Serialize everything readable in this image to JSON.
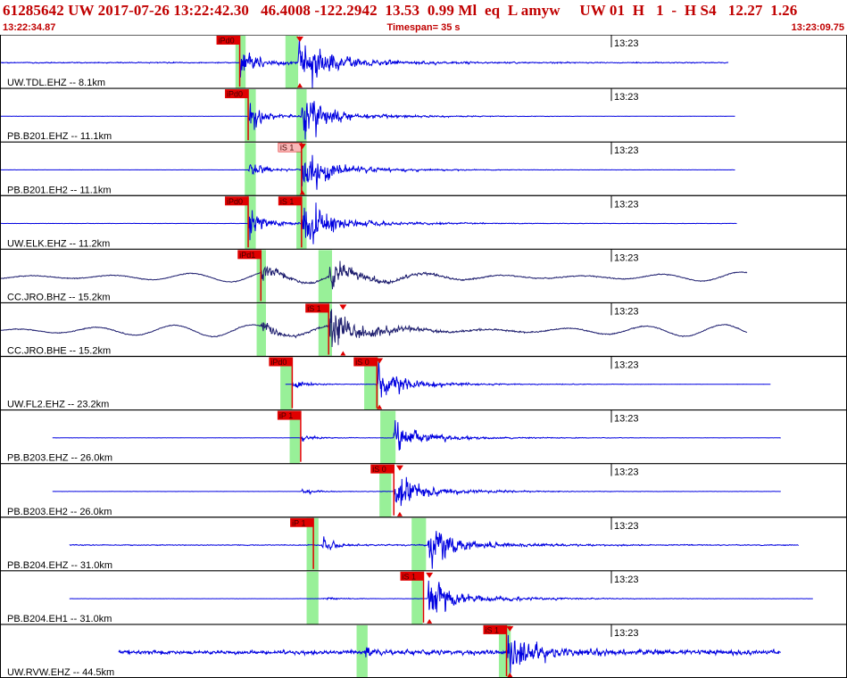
{
  "header": {
    "title": "61285642 UW 2017-07-26 13:22:42.30   46.4008 -122.2942  13.53  0.99 Ml  eq  L amyw     UW 01  H   1  -  H S4   12.27  1.26",
    "start_time": "13:22:34.87",
    "timespan": "Timespan=  35 s",
    "end_time": "13:23:09.75"
  },
  "colors": {
    "trace_blue": "#0000e0",
    "trace_navy": "#202070",
    "pick_red": "#e00000",
    "pick_pink": "#f8b8b8",
    "window_green": "#98f098",
    "header_red": "#c00000"
  },
  "chart_data": {
    "type": "line",
    "x_axis": {
      "unit": "s",
      "start_time": "13:22:34.87",
      "end_time": "13:23:09.75",
      "span_s": 35,
      "minute_label": "13:23"
    },
    "traces": [
      {
        "station": "UW.TDL.EHZ -- 8.1km",
        "color": "#0000e0",
        "data_start": 0.0,
        "data_end": 0.86,
        "noise": 0.12,
        "p_arrival": 0.283,
        "s_arrival": 0.352,
        "p_amp": 0.7,
        "s_amp": 0.8,
        "microseism": 0,
        "picks": [
          {
            "label": "iPd0",
            "pos": 0.283,
            "style": "red"
          }
        ],
        "s_tick": 0.354,
        "green_windows": [
          [
            0.278,
            0.29
          ],
          [
            0.337,
            0.352
          ]
        ]
      },
      {
        "station": "PB.B201.EHZ -- 11.1km",
        "color": "#0000e0",
        "data_start": 0.0,
        "data_end": 0.868,
        "noise": 0.02,
        "p_arrival": 0.293,
        "s_arrival": 0.356,
        "p_amp": 0.55,
        "s_amp": 0.75,
        "microseism": 0,
        "picks": [
          {
            "label": "iPd0",
            "pos": 0.293,
            "style": "red"
          }
        ],
        "green_windows": [
          [
            0.289,
            0.302
          ],
          [
            0.35,
            0.362
          ]
        ]
      },
      {
        "station": "PB.B201.EH2 -- 11.1km",
        "color": "#0000e0",
        "data_start": 0.0,
        "data_end": 0.868,
        "noise": 0.02,
        "p_arrival": 0.293,
        "s_arrival": 0.356,
        "p_amp": 0.3,
        "s_amp": 0.7,
        "microseism": 0,
        "picks": [
          {
            "label": "iS 1",
            "pos": 0.356,
            "style": "pink"
          }
        ],
        "s_tick": 0.357,
        "green_windows": [
          [
            0.289,
            0.302
          ],
          [
            0.35,
            0.362
          ]
        ]
      },
      {
        "station": "UW.ELK.EHZ -- 11.2km",
        "color": "#0000e0",
        "data_start": 0.0,
        "data_end": 0.87,
        "noise": 0.03,
        "p_arrival": 0.293,
        "s_arrival": 0.356,
        "p_amp": 0.5,
        "s_amp": 0.8,
        "microseism": 0,
        "picks": [
          {
            "label": "iPd0",
            "pos": 0.293,
            "style": "red"
          },
          {
            "label": "iS 1",
            "pos": 0.356,
            "style": "red"
          }
        ],
        "green_windows": [
          [
            0.289,
            0.302
          ],
          [
            0.35,
            0.362
          ]
        ]
      },
      {
        "station": "CC.JRO.BHZ -- 15.2km",
        "color": "#202070",
        "data_start": 0.0,
        "data_end": 0.882,
        "noise": 0.1,
        "p_arrival": 0.308,
        "s_arrival": 0.388,
        "p_amp": 0.35,
        "s_amp": 0.45,
        "microseism": 0.22,
        "picks": [
          {
            "label": "iPd1",
            "pos": 0.308,
            "style": "red"
          }
        ],
        "green_windows": [
          [
            0.303,
            0.314
          ],
          [
            0.376,
            0.392
          ]
        ]
      },
      {
        "station": "CC.JRO.BHE -- 15.2km",
        "color": "#202070",
        "data_start": 0.0,
        "data_end": 0.882,
        "noise": 0.1,
        "p_arrival": 0.308,
        "s_arrival": 0.388,
        "p_amp": 0.3,
        "s_amp": 0.75,
        "microseism": 0.22,
        "picks": [
          {
            "label": "iS 1",
            "pos": 0.388,
            "style": "red"
          }
        ],
        "s_tick": 0.405,
        "green_windows": [
          [
            0.303,
            0.314
          ],
          [
            0.376,
            0.392
          ]
        ]
      },
      {
        "station": "UW.FL2.EHZ -- 23.2km",
        "color": "#0000e0",
        "data_start": 0.337,
        "data_end": 0.91,
        "noise": 0.03,
        "p_arrival": 0.345,
        "s_arrival": 0.445,
        "p_amp": 0.15,
        "s_amp": 0.5,
        "microseism": 0,
        "picks": [
          {
            "label": "iPd0",
            "pos": 0.345,
            "style": "red"
          },
          {
            "label": "iS 0",
            "pos": 0.445,
            "style": "red"
          }
        ],
        "s_tick": 0.448,
        "green_windows": [
          [
            0.331,
            0.345
          ],
          [
            0.43,
            0.447
          ]
        ]
      },
      {
        "station": "PB.B203.EHZ -- 26.0km",
        "color": "#0000e0",
        "data_start": 0.062,
        "data_end": 0.922,
        "noise": 0.02,
        "p_arrival": 0.355,
        "s_arrival": 0.465,
        "p_amp": 0.12,
        "s_amp": 0.55,
        "microseism": 0,
        "picks": [
          {
            "label": "iP 1",
            "pos": 0.355,
            "style": "red"
          }
        ],
        "green_windows": [
          [
            0.342,
            0.354
          ],
          [
            0.449,
            0.467
          ]
        ]
      },
      {
        "station": "PB.B203.EH2 -- 26.0km",
        "color": "#0000e0",
        "data_start": 0.062,
        "data_end": 0.922,
        "noise": 0.02,
        "p_arrival": 0.355,
        "s_arrival": 0.465,
        "p_amp": 0.1,
        "s_amp": 0.6,
        "microseism": 0,
        "picks": [
          {
            "label": "iS 0",
            "pos": 0.465,
            "style": "red"
          }
        ],
        "s_tick": 0.472,
        "green_windows": [
          [
            0.448,
            0.462
          ]
        ]
      },
      {
        "station": "PB.B204.EHZ -- 31.0km",
        "color": "#0000e0",
        "data_start": 0.082,
        "data_end": 0.943,
        "noise": 0.1,
        "p_arrival": 0.38,
        "s_arrival": 0.505,
        "p_amp": 0.2,
        "s_amp": 0.7,
        "microseism": 0,
        "picks": [
          {
            "label": "iP 1",
            "pos": 0.37,
            "style": "red"
          }
        ],
        "green_windows": [
          [
            0.362,
            0.376
          ],
          [
            0.486,
            0.503
          ]
        ]
      },
      {
        "station": "PB.B204.EH1 -- 31.0km",
        "color": "#0000e0",
        "data_start": 0.082,
        "data_end": 0.96,
        "noise": 0.02,
        "p_arrival": 0.38,
        "s_arrival": 0.505,
        "p_amp": 0.08,
        "s_amp": 0.75,
        "microseism": 0,
        "picks": [
          {
            "label": "iS 1",
            "pos": 0.5,
            "style": "red"
          }
        ],
        "s_tick": 0.507,
        "green_windows": [
          [
            0.362,
            0.376
          ],
          [
            0.486,
            0.499
          ]
        ]
      },
      {
        "station": "UW.RVW.EHZ -- 44.5km",
        "color": "#0000e0",
        "data_start": 0.14,
        "data_end": 0.922,
        "noise": 0.45,
        "p_arrival": 0.43,
        "s_arrival": 0.598,
        "p_amp": 0.2,
        "s_amp": 0.7,
        "microseism": 0,
        "picks": [
          {
            "label": "iS 1",
            "pos": 0.598,
            "style": "red"
          }
        ],
        "s_tick": 0.602,
        "green_windows": [
          [
            0.421,
            0.434
          ],
          [
            0.589,
            0.603
          ]
        ]
      }
    ]
  }
}
